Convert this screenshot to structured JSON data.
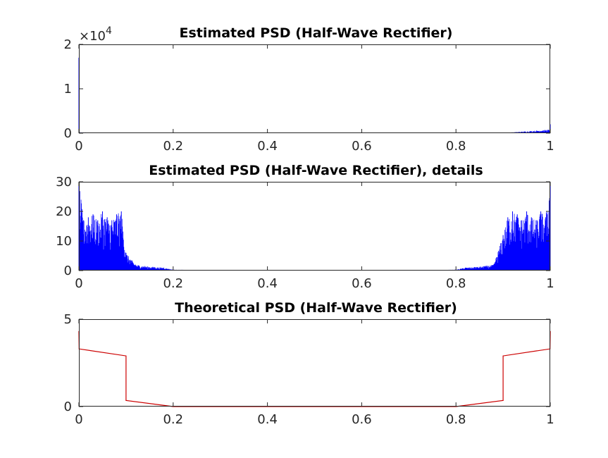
{
  "chart_data": [
    {
      "type": "bar",
      "title": "Estimated PSD (Half-Wave Rectifier)",
      "xlabel": "",
      "ylabel": "",
      "xlim": [
        0,
        1
      ],
      "ylim": [
        0,
        2
      ],
      "y_exponent_base": "×10",
      "y_exponent_power": "4",
      "x_ticks": [
        "0",
        "0.2",
        "0.4",
        "0.6",
        "0.8",
        "1"
      ],
      "y_ticks": [
        "0",
        "1",
        "2"
      ],
      "grid": false,
      "color": "#0000ff",
      "x": [
        0,
        0.001,
        0.1,
        0.2,
        0.5,
        0.8,
        0.9,
        0.999,
        1
      ],
      "values": [
        1.7,
        0.02,
        0.004,
        0.001,
        0.0005,
        0.001,
        0.004,
        0.08,
        0.2
      ]
    },
    {
      "type": "bar",
      "title": "Estimated PSD (Half-Wave Rectifier), details",
      "xlabel": "",
      "ylabel": "",
      "xlim": [
        0,
        1
      ],
      "ylim": [
        0,
        30
      ],
      "x_ticks": [
        "0",
        "0.2",
        "0.4",
        "0.6",
        "0.8",
        "1"
      ],
      "y_ticks": [
        "0",
        "10",
        "20",
        "30"
      ],
      "grid": false,
      "color": "#0000ff",
      "x": [
        0,
        0.01,
        0.02,
        0.03,
        0.04,
        0.05,
        0.06,
        0.07,
        0.08,
        0.09,
        0.1,
        0.12,
        0.14,
        0.16,
        0.18,
        0.2,
        0.3,
        0.5,
        0.7,
        0.8,
        0.82,
        0.84,
        0.86,
        0.88,
        0.9,
        0.91,
        0.92,
        0.93,
        0.94,
        0.95,
        0.96,
        0.97,
        0.98,
        0.99,
        1
      ],
      "values": [
        30,
        17,
        18,
        19,
        17,
        20,
        18,
        17,
        19,
        20,
        6,
        2,
        1.5,
        1.2,
        1,
        0.3,
        0.1,
        0.05,
        0.1,
        0.3,
        1,
        1.2,
        1.5,
        2,
        12,
        18,
        20,
        19,
        17,
        20,
        18,
        17,
        20,
        18,
        30
      ]
    },
    {
      "type": "line",
      "title": "Theoretical PSD (Half-Wave Rectifier)",
      "xlabel": "",
      "ylabel": "",
      "xlim": [
        0,
        1
      ],
      "ylim": [
        0,
        5
      ],
      "x_ticks": [
        "0",
        "0.2",
        "0.4",
        "0.6",
        "0.8",
        "1"
      ],
      "y_ticks": [
        "0",
        "5"
      ],
      "grid": false,
      "color": "#cc0000",
      "x": [
        0,
        0.0005,
        0.1,
        0.1,
        0.2,
        0.8,
        0.9,
        0.9,
        0.9995,
        1
      ],
      "values": [
        4.3,
        3.3,
        2.9,
        0.35,
        0.0,
        0.0,
        0.35,
        2.9,
        3.3,
        4.3
      ]
    }
  ]
}
